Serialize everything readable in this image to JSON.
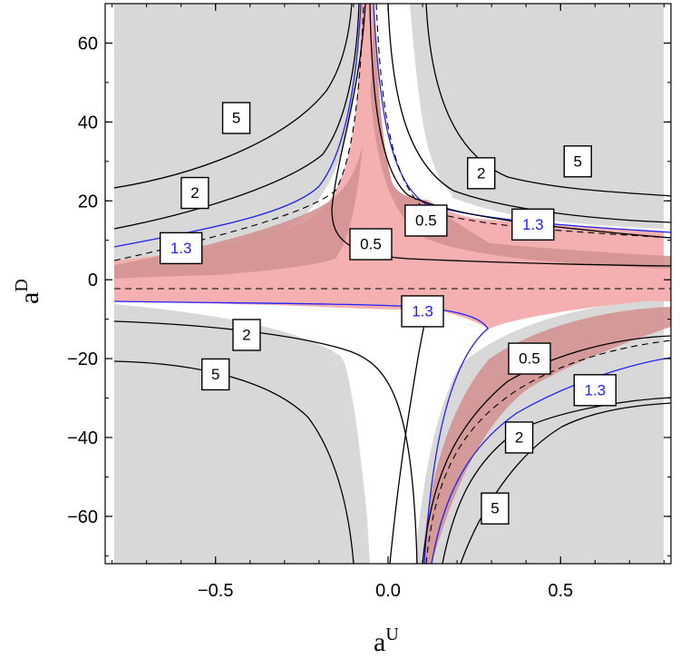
{
  "chart_data": {
    "type": "contour",
    "xlabel": "a",
    "xlabel_sup": "U",
    "ylabel": "a",
    "ylabel_sup": "D",
    "xlim": [
      -0.82,
      0.82
    ],
    "ylim": [
      -72,
      70
    ],
    "xticks": [
      {
        "value": -0.5,
        "label": "−0.5"
      },
      {
        "value": 0.0,
        "label": "0.0"
      },
      {
        "value": 0.5,
        "label": "0.5"
      }
    ],
    "yticks": [
      {
        "value": 60,
        "label": "60"
      },
      {
        "value": 40,
        "label": "40"
      },
      {
        "value": 20,
        "label": "20"
      },
      {
        "value": 0,
        "label": "0"
      },
      {
        "value": -20,
        "label": "−20"
      },
      {
        "value": -40,
        "label": "−40"
      },
      {
        "value": -60,
        "label": "−60"
      }
    ],
    "colors": {
      "background_excluded": "#d8d8d8",
      "allowed_region": "#f4b0b0",
      "allowed_inner": "#d49393",
      "contour_blue": "#2020ff",
      "contour_black": "#000000"
    },
    "contour_labels": [
      {
        "text": "5",
        "x": -0.44,
        "y": 41,
        "color": "#000000"
      },
      {
        "text": "5",
        "x": 0.55,
        "y": 30,
        "color": "#000000"
      },
      {
        "text": "5",
        "x": -0.5,
        "y": -24,
        "color": "#000000"
      },
      {
        "text": "5",
        "x": 0.31,
        "y": -58,
        "color": "#000000"
      },
      {
        "text": "2",
        "x": -0.56,
        "y": 22,
        "color": "#000000"
      },
      {
        "text": "2",
        "x": 0.27,
        "y": 27,
        "color": "#000000"
      },
      {
        "text": "2",
        "x": -0.41,
        "y": -14,
        "color": "#000000"
      },
      {
        "text": "2",
        "x": 0.38,
        "y": -40,
        "color": "#000000"
      },
      {
        "text": "1.3",
        "x": -0.6,
        "y": 8,
        "color": "#2020ff"
      },
      {
        "text": "1.3",
        "x": 0.42,
        "y": 14,
        "color": "#2020ff"
      },
      {
        "text": "1.3",
        "x": 0.1,
        "y": -8,
        "color": "#2020ff"
      },
      {
        "text": "1.3",
        "x": 0.6,
        "y": -28,
        "color": "#2020ff"
      },
      {
        "text": "0.5",
        "x": 0.11,
        "y": 15,
        "color": "#000000"
      },
      {
        "text": "0.5",
        "x": -0.05,
        "y": 9,
        "color": "#000000"
      },
      {
        "text": "0.5",
        "x": 0.41,
        "y": -20,
        "color": "#000000"
      }
    ]
  }
}
